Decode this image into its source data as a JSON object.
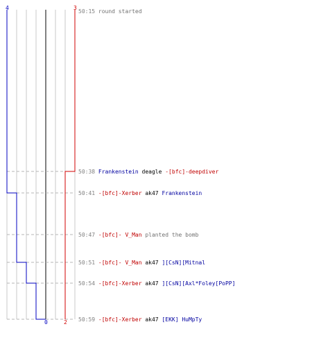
{
  "chart_data": {
    "type": "line",
    "colors": {
      "blue": "#0000c0",
      "red": "#d00000",
      "grid": "#c8c8c8",
      "center": "#808080",
      "dash": "#b4b4b4"
    },
    "blue_start": "4",
    "red_start": "3",
    "blue_end": "0",
    "red_end": "2",
    "blue_steps": [
      {
        "event": 2,
        "value": 3
      },
      {
        "event": 4,
        "value": 2
      },
      {
        "event": 5,
        "value": 1
      },
      {
        "event": 6,
        "value": 0
      }
    ],
    "red_steps": [
      {
        "event": 1,
        "value": 2
      }
    ],
    "events": [
      {
        "time": "50:15",
        "parts": [
          {
            "text": "round started",
            "color": "gray"
          }
        ]
      },
      {
        "time": "50:38",
        "parts": [
          {
            "text": "Frankenstein",
            "color": "blue"
          },
          {
            "text": "deagle",
            "color": "black"
          },
          {
            "text": "-[bfc]-deepdiver",
            "color": "red"
          }
        ]
      },
      {
        "time": "50:41",
        "parts": [
          {
            "text": "-[bfc]-Xerber",
            "color": "red"
          },
          {
            "text": "ak47",
            "color": "black"
          },
          {
            "text": "Frankenstein",
            "color": "blue"
          }
        ]
      },
      {
        "time": "50:47",
        "parts": [
          {
            "text": "-[bfc]- V_Man",
            "color": "red"
          },
          {
            "text": "planted the bomb",
            "color": "gray"
          }
        ]
      },
      {
        "time": "50:51",
        "parts": [
          {
            "text": "-[bfc]- V_Man",
            "color": "red"
          },
          {
            "text": "ak47",
            "color": "black"
          },
          {
            "text": "][CsN][Mitnal",
            "color": "blue"
          }
        ]
      },
      {
        "time": "50:54",
        "parts": [
          {
            "text": "-[bfc]-Xerber",
            "color": "red"
          },
          {
            "text": "ak47",
            "color": "black"
          },
          {
            "text": "][CsN][Axl*Foley[PoPP]",
            "color": "blue"
          }
        ]
      },
      {
        "time": "50:59",
        "parts": [
          {
            "text": "-[bfc]-Xerber",
            "color": "red"
          },
          {
            "text": "ak47",
            "color": "black"
          },
          {
            "text": "[EKK] HuMpTy",
            "color": "blue"
          }
        ]
      }
    ]
  }
}
